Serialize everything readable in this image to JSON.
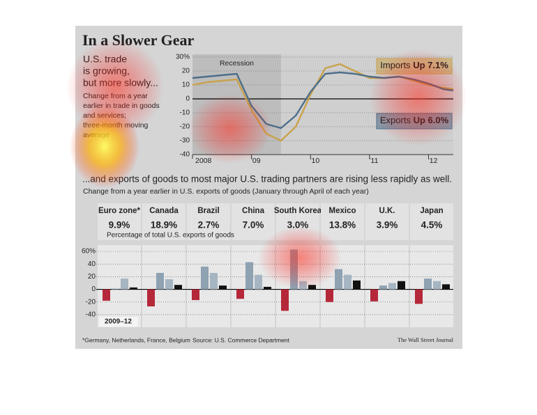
{
  "chart_data": [
    {
      "type": "line",
      "title": "In a Slower Gear",
      "subtitle_lines": [
        "U.S. trade",
        "is growing,",
        "but more slowly..."
      ],
      "note_lines": [
        "Change from a year",
        "earlier in trade in goods",
        "and services;",
        "three-month moving",
        "average"
      ],
      "x": [
        2008,
        2008.25,
        2008.5,
        2008.75,
        2009,
        2009.25,
        2009.5,
        2009.75,
        2010,
        2010.25,
        2010.5,
        2010.75,
        2011,
        2011.25,
        2011.5,
        2011.75,
        2012,
        2012.25,
        2012.42
      ],
      "xlim": [
        2008,
        2012.42
      ],
      "xticks": [
        {
          "value": 2008,
          "label": "2008"
        },
        {
          "value": 2009,
          "label": "’09"
        },
        {
          "value": 2010,
          "label": "’10"
        },
        {
          "value": 2011,
          "label": "’11"
        },
        {
          "value": 2012,
          "label": "’12"
        }
      ],
      "ylim": [
        -40,
        30
      ],
      "yticks": [
        {
          "value": 30,
          "label": "30%"
        },
        20,
        10,
        0,
        -10,
        -20,
        -30,
        -40
      ],
      "grid": true,
      "shaded": {
        "label": "Recession",
        "from": 2008,
        "to": 2009.5
      },
      "series": [
        {
          "name": "Imports",
          "label": "Up 7.1%",
          "color": "#c9a24c",
          "values": [
            10,
            12,
            13,
            14,
            -8,
            -25,
            -30,
            -20,
            3,
            22,
            25,
            20,
            15,
            15,
            16,
            13,
            10,
            8,
            7
          ]
        },
        {
          "name": "Exports",
          "label": "Up 6.0%",
          "color": "#4d6e8a",
          "values": [
            15,
            16,
            17,
            18,
            -5,
            -18,
            -21,
            -12,
            5,
            18,
            19,
            18,
            16,
            15,
            16,
            14,
            11,
            7,
            6
          ]
        }
      ]
    },
    {
      "type": "bar",
      "title": "...and exports of goods to most major U.S. trading partners are rising less rapidly as well.",
      "subtitle": "Change from a year earlier in U.S. exports of goods (January through April of each year)",
      "categories": [
        "Euro zone*",
        "Canada",
        "Brazil",
        "China",
        "South Korea",
        "Mexico",
        "U.K.",
        "Japan"
      ],
      "highlight": {
        "index": 0,
        "color": "#b5283a"
      },
      "shares": {
        "label": "Percentage of total U.S. exports of goods",
        "values": [
          9.9,
          18.9,
          2.7,
          7.0,
          3.0,
          13.8,
          3.9,
          4.5
        ],
        "value_labels": [
          "9.9%",
          "18.9%",
          "2.7%",
          "7.0%",
          "3.0%",
          "13.8%",
          "3.9%",
          "4.5%"
        ]
      },
      "period_label": "2009–12",
      "ylim": [
        -60,
        70
      ],
      "yticks": [
        {
          "value": 60,
          "label": "60%"
        },
        40,
        20,
        0,
        -20,
        -40
      ],
      "grid": true,
      "series": [
        {
          "color": "#b5283a",
          "values": [
            -18,
            -27,
            -17,
            -15,
            -34,
            -20,
            -19,
            -23
          ]
        },
        {
          "color": "#8ea2b2",
          "values": [
            1,
            26,
            36,
            43,
            63,
            32,
            6,
            17
          ]
        },
        {
          "color": "#a6b5c2",
          "values": [
            17,
            16,
            26,
            23,
            13,
            23,
            10,
            13
          ]
        },
        {
          "color": "#111111",
          "values": [
            3,
            7,
            6,
            4,
            7,
            14,
            13,
            8
          ]
        }
      ]
    }
  ],
  "footer": {
    "note": "*Germany, Netherlands, France, Belgium",
    "source": "Source: U.S. Commerce Department",
    "credit": "The Wall Street Journal"
  }
}
